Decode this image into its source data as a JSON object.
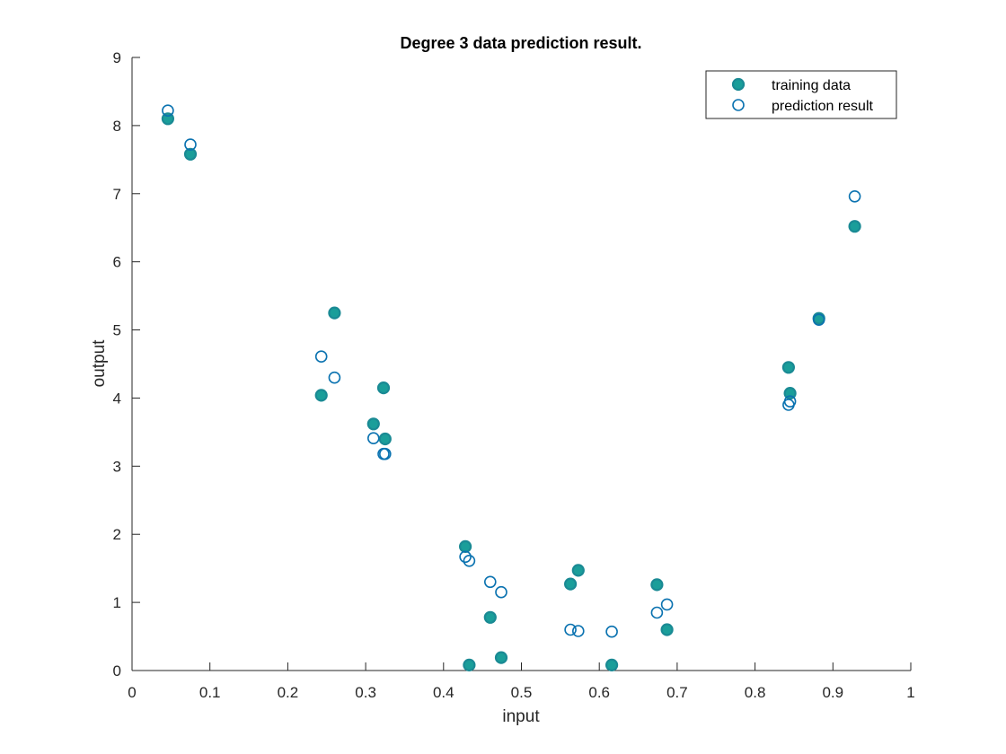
{
  "chart_data": {
    "type": "scatter",
    "title": "Degree 3 data prediction result.",
    "xlabel": "input",
    "ylabel": "output",
    "xlim": [
      0,
      1
    ],
    "ylim": [
      0,
      9
    ],
    "x_ticks": [
      "0",
      "0.1",
      "0.2",
      "0.3",
      "0.4",
      "0.5",
      "0.6",
      "0.7",
      "0.8",
      "0.9",
      "1"
    ],
    "y_ticks": [
      "0",
      "1",
      "2",
      "3",
      "4",
      "5",
      "6",
      "7",
      "8",
      "9"
    ],
    "grid": false,
    "legend_position": "top-right",
    "colors": {
      "training_fill": "#1a9e9a",
      "training_edge": "#1a8a94",
      "prediction_edge": "#0a72b0",
      "axis": "#262626"
    },
    "series": [
      {
        "name": "training data",
        "marker": "filled-circle",
        "points": [
          [
            0.046,
            8.1
          ],
          [
            0.075,
            7.58
          ],
          [
            0.243,
            4.04
          ],
          [
            0.26,
            5.25
          ],
          [
            0.31,
            3.62
          ],
          [
            0.323,
            4.15
          ],
          [
            0.325,
            3.4
          ],
          [
            0.428,
            1.82
          ],
          [
            0.433,
            0.08
          ],
          [
            0.46,
            0.78
          ],
          [
            0.474,
            0.19
          ],
          [
            0.563,
            1.27
          ],
          [
            0.573,
            1.47
          ],
          [
            0.616,
            0.08
          ],
          [
            0.674,
            1.26
          ],
          [
            0.687,
            0.6
          ],
          [
            0.843,
            4.45
          ],
          [
            0.845,
            4.07
          ],
          [
            0.882,
            5.17
          ],
          [
            0.928,
            6.52
          ]
        ]
      },
      {
        "name": "prediction result",
        "marker": "open-circle",
        "points": [
          [
            0.046,
            8.22
          ],
          [
            0.075,
            7.72
          ],
          [
            0.243,
            4.61
          ],
          [
            0.26,
            4.3
          ],
          [
            0.31,
            3.41
          ],
          [
            0.323,
            3.18
          ],
          [
            0.325,
            3.18
          ],
          [
            0.428,
            1.67
          ],
          [
            0.433,
            1.61
          ],
          [
            0.46,
            1.3
          ],
          [
            0.474,
            1.15
          ],
          [
            0.563,
            0.6
          ],
          [
            0.573,
            0.58
          ],
          [
            0.616,
            0.57
          ],
          [
            0.674,
            0.85
          ],
          [
            0.687,
            0.97
          ],
          [
            0.843,
            3.9
          ],
          [
            0.845,
            3.95
          ],
          [
            0.882,
            5.15
          ],
          [
            0.928,
            6.96
          ]
        ]
      }
    ]
  }
}
